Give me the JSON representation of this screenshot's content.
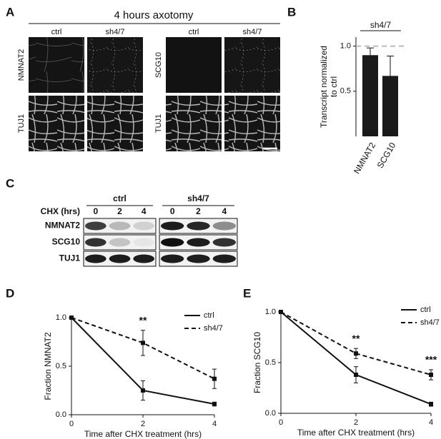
{
  "panel_labels": {
    "a": "A",
    "b": "B",
    "c": "C",
    "d": "D",
    "e": "E"
  },
  "panel_a": {
    "title": "4 hours axotomy",
    "left": {
      "columns": [
        "ctrl",
        "sh4/7"
      ],
      "rows": [
        "NMNAT2",
        "TUJ1"
      ]
    },
    "right": {
      "columns": [
        "ctrl",
        "sh4/7"
      ],
      "rows": [
        "SCG10",
        "TUJ1"
      ]
    }
  },
  "panel_c": {
    "groups": [
      "ctrl",
      "sh4/7"
    ],
    "time_label": "CHX (hrs)",
    "timepoints": [
      [
        "0",
        "2",
        "4"
      ],
      [
        "0",
        "2",
        "4"
      ]
    ],
    "rows": [
      "NMNAT2",
      "SCG10",
      "TUJ1"
    ]
  },
  "chart_data": [
    {
      "type": "bar",
      "group_label": "sh4/7",
      "y_label": [
        "Transcript normalized",
        "to ctrl"
      ],
      "categories": [
        "NMNAT2",
        "SCG10"
      ],
      "values": [
        0.9,
        0.67
      ],
      "errors": [
        0.08,
        0.22
      ],
      "color": "#1a1a1a",
      "reference_line": 1,
      "ylim": [
        0,
        1.1
      ],
      "yticks": [
        0.5,
        {
          "value": 1,
          "label": "1.0"
        }
      ]
    },
    {
      "type": "line",
      "x_label": "Time after CHX treatment  (hrs)",
      "y_label": "Fraction NMNAT2",
      "x": [
        0,
        2,
        4
      ],
      "series": [
        {
          "name": "ctrl",
          "color": "#111111",
          "dashed": false,
          "values": [
            1.0,
            0.25,
            0.11
          ],
          "errors": [
            0,
            0.1,
            0.02
          ]
        },
        {
          "name": "sh4/7",
          "color": "#111111",
          "dashed": true,
          "values": [
            1.0,
            0.74,
            0.37
          ],
          "errors": [
            0,
            0.13,
            0.1
          ]
        }
      ],
      "annotations": [
        {
          "text": "**",
          "x": 2
        }
      ],
      "legend": "upper right",
      "xlim": [
        0,
        4
      ],
      "xticks": [
        0,
        2,
        4
      ],
      "ylim": [
        0,
        1
      ],
      "yticks": [
        {
          "value": 0,
          "label": "0.0"
        },
        0.5,
        {
          "value": 1,
          "label": "1.0"
        }
      ]
    },
    {
      "type": "line",
      "x_label": "Time after CHX treatment  (hrs)",
      "y_label": "Fraction SCG10",
      "x": [
        0,
        2,
        4
      ],
      "series": [
        {
          "name": "ctrl",
          "color": "#111111",
          "dashed": false,
          "values": [
            1.0,
            0.38,
            0.09
          ],
          "errors": [
            0,
            0.08,
            0.02
          ]
        },
        {
          "name": "sh4/7",
          "color": "#111111",
          "dashed": true,
          "values": [
            1.0,
            0.59,
            0.38
          ],
          "errors": [
            0,
            0.05,
            0.05
          ]
        }
      ],
      "annotations": [
        {
          "text": "**",
          "x": 2
        },
        {
          "text": "***",
          "x": 4
        }
      ],
      "legend": "upper right",
      "xlim": [
        0,
        4
      ],
      "xticks": [
        0,
        2,
        4
      ],
      "ylim": [
        0,
        1
      ],
      "yticks": [
        {
          "value": 0,
          "label": "0.0"
        },
        0.5,
        {
          "value": 1,
          "label": "1.0"
        }
      ]
    }
  ]
}
